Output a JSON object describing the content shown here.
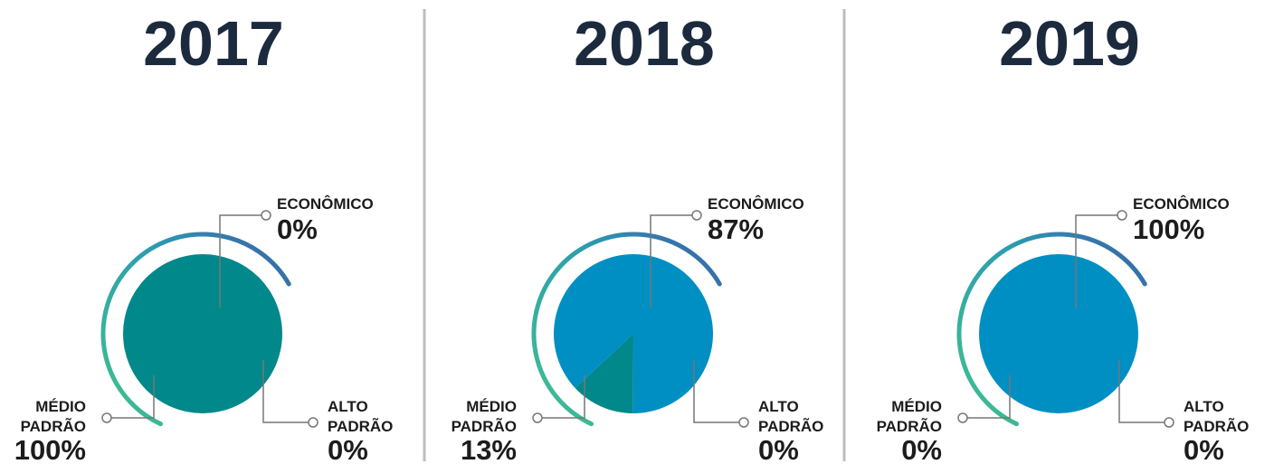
{
  "chart_data": [
    {
      "type": "pie",
      "title": "2017",
      "categories": [
        "ECONÔMICO",
        "MÉDIO PADRÃO",
        "ALTO PADRÃO"
      ],
      "values": [
        0,
        100,
        0
      ],
      "value_labels": [
        "0%",
        "100%",
        "0%"
      ],
      "colors": [
        "#008fc3",
        "#00888a",
        "#3a62a8"
      ]
    },
    {
      "type": "pie",
      "title": "2018",
      "categories": [
        "ECONÔMICO",
        "MÉDIO PADRÃO",
        "ALTO PADRÃO"
      ],
      "values": [
        87,
        13,
        0
      ],
      "value_labels": [
        "87%",
        "13%",
        "0%"
      ],
      "colors": [
        "#008fc3",
        "#00888a",
        "#3a62a8"
      ]
    },
    {
      "type": "pie",
      "title": "2019",
      "categories": [
        "ECONÔMICO",
        "MÉDIO PADRÃO",
        "ALTO PADRÃO"
      ],
      "values": [
        100,
        0,
        0
      ],
      "value_labels": [
        "100%",
        "0%",
        "0%"
      ],
      "colors": [
        "#008fc3",
        "#00888a",
        "#3a62a8"
      ]
    }
  ]
}
